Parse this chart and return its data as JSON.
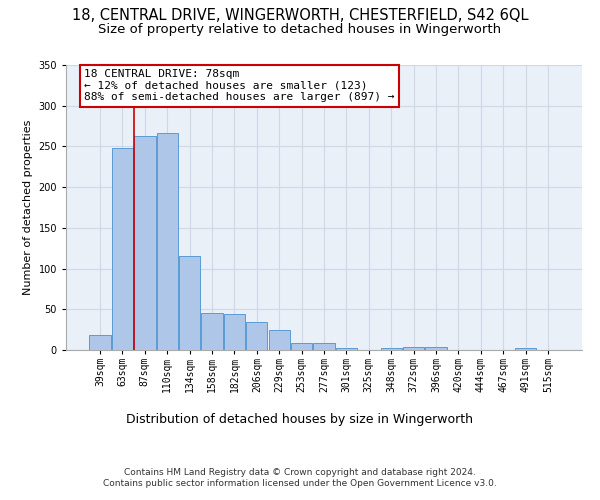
{
  "title1": "18, CENTRAL DRIVE, WINGERWORTH, CHESTERFIELD, S42 6QL",
  "title2": "Size of property relative to detached houses in Wingerworth",
  "xlabel": "Distribution of detached houses by size in Wingerworth",
  "ylabel": "Number of detached properties",
  "bar_labels": [
    "39sqm",
    "63sqm",
    "87sqm",
    "110sqm",
    "134sqm",
    "158sqm",
    "182sqm",
    "206sqm",
    "229sqm",
    "253sqm",
    "277sqm",
    "301sqm",
    "325sqm",
    "348sqm",
    "372sqm",
    "396sqm",
    "420sqm",
    "444sqm",
    "467sqm",
    "491sqm",
    "515sqm"
  ],
  "bar_values": [
    18,
    248,
    263,
    267,
    115,
    45,
    44,
    34,
    25,
    8,
    8,
    3,
    0,
    3,
    4,
    4,
    0,
    0,
    0,
    3,
    0
  ],
  "bar_color": "#aec6e8",
  "bar_edge_color": "#5b9bd5",
  "vline_color": "#cc0000",
  "annotation_text": "18 CENTRAL DRIVE: 78sqm\n← 12% of detached houses are smaller (123)\n88% of semi-detached houses are larger (897) →",
  "annotation_box_color": "#ffffff",
  "annotation_box_edge": "#cc0000",
  "ylim": [
    0,
    350
  ],
  "yticks": [
    0,
    50,
    100,
    150,
    200,
    250,
    300,
    350
  ],
  "grid_color": "#d0d8e8",
  "plot_bg_color": "#eaf0f8",
  "footnote": "Contains HM Land Registry data © Crown copyright and database right 2024.\nContains public sector information licensed under the Open Government Licence v3.0.",
  "title1_fontsize": 10.5,
  "title2_fontsize": 9.5,
  "xlabel_fontsize": 9,
  "ylabel_fontsize": 8,
  "tick_fontsize": 7,
  "annot_fontsize": 8,
  "footnote_fontsize": 6.5,
  "vline_pos": 1.5
}
